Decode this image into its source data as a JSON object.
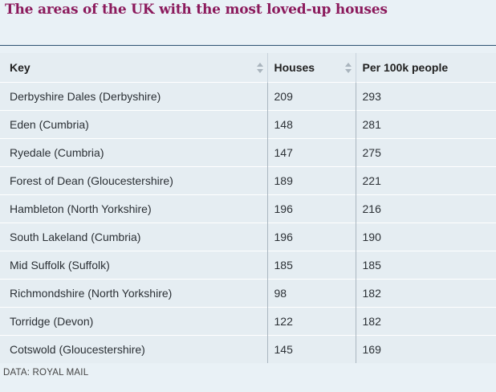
{
  "title": "The areas of the UK with the most loved-up houses",
  "source": "DATA: ROYAL MAIL",
  "chart_data": {
    "type": "table",
    "columns": [
      "Key",
      "Houses",
      "Per 100k people"
    ],
    "rows": [
      [
        "Derbyshire Dales (Derbyshire)",
        "209",
        "293"
      ],
      [
        "Eden (Cumbria)",
        "148",
        "281"
      ],
      [
        "Ryedale (Cumbria)",
        "147",
        "275"
      ],
      [
        "Forest of Dean (Gloucestershire)",
        "189",
        "221"
      ],
      [
        "Hambleton (North Yorkshire)",
        "196",
        "216"
      ],
      [
        "South Lakeland (Cumbria)",
        "196",
        "190"
      ],
      [
        "Mid Suffolk (Suffolk)",
        "185",
        "185"
      ],
      [
        "Richmondshire (North Yorkshire)",
        "98",
        "182"
      ],
      [
        "Torridge (Devon)",
        "122",
        "182"
      ],
      [
        "Cotswold (Gloucestershire)",
        "145",
        "169"
      ]
    ]
  }
}
